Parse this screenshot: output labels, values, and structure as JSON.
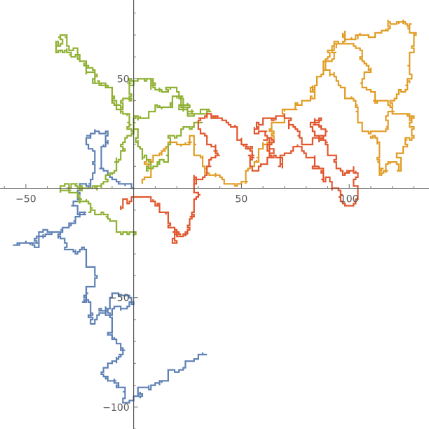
{
  "chart_data": {
    "type": "line",
    "subtype": "lattice random walks",
    "title": "",
    "xlabel": "",
    "ylabel": "",
    "xlim": [
      -62,
      137
    ],
    "ylim": [
      -110,
      86
    ],
    "grid": false,
    "legend": "none",
    "axes_origin": [
      0,
      0
    ],
    "x_ticks": [
      {
        "value": -50,
        "label": "−50"
      },
      {
        "value": 50,
        "label": "50"
      },
      {
        "value": 100,
        "label": "100"
      }
    ],
    "y_ticks": [
      {
        "value": 50,
        "label": "50"
      },
      {
        "value": -50,
        "label": "−50"
      },
      {
        "value": -100,
        "label": "−100"
      }
    ],
    "series": [
      {
        "color": "#5e81b5",
        "waypoints": [
          [
            0,
            0
          ],
          [
            -6,
            3
          ],
          [
            -12,
            8
          ],
          [
            -15,
            18
          ],
          [
            -12,
            26
          ],
          [
            -22,
            20
          ],
          [
            -18,
            10
          ],
          [
            -24,
            2
          ],
          [
            -28,
            -6
          ],
          [
            -22,
            -12
          ],
          [
            -30,
            -18
          ],
          [
            -42,
            -20
          ],
          [
            -50,
            -24
          ],
          [
            -56,
            -26
          ],
          [
            -44,
            -25
          ],
          [
            -34,
            -20
          ],
          [
            -28,
            -28
          ],
          [
            -22,
            -36
          ],
          [
            -18,
            -44
          ],
          [
            -22,
            -52
          ],
          [
            -20,
            -62
          ],
          [
            -10,
            -58
          ],
          [
            -2,
            -50
          ],
          [
            -8,
            -48
          ],
          [
            -16,
            -56
          ],
          [
            -10,
            -66
          ],
          [
            -4,
            -74
          ],
          [
            -10,
            -80
          ],
          [
            -14,
            -86
          ],
          [
            -8,
            -90
          ],
          [
            -4,
            -98
          ],
          [
            2,
            -92
          ],
          [
            8,
            -90
          ],
          [
            16,
            -84
          ],
          [
            24,
            -80
          ],
          [
            30,
            -78
          ],
          [
            34,
            -76
          ]
        ]
      },
      {
        "color": "#e19c24",
        "waypoints": [
          [
            4,
            2
          ],
          [
            8,
            12
          ],
          [
            14,
            18
          ],
          [
            20,
            20
          ],
          [
            26,
            24
          ],
          [
            28,
            16
          ],
          [
            32,
            10
          ],
          [
            36,
            6
          ],
          [
            42,
            2
          ],
          [
            50,
            2
          ],
          [
            54,
            10
          ],
          [
            58,
            18
          ],
          [
            64,
            24
          ],
          [
            70,
            30
          ],
          [
            76,
            36
          ],
          [
            80,
            40
          ],
          [
            84,
            46
          ],
          [
            88,
            54
          ],
          [
            92,
            64
          ],
          [
            98,
            72
          ],
          [
            104,
            68
          ],
          [
            112,
            70
          ],
          [
            118,
            74
          ],
          [
            124,
            76
          ],
          [
            128,
            72
          ],
          [
            130,
            62
          ],
          [
            128,
            50
          ],
          [
            124,
            44
          ],
          [
            120,
            36
          ],
          [
            118,
            28
          ],
          [
            112,
            26
          ],
          [
            106,
            30
          ],
          [
            104,
            38
          ],
          [
            98,
            46
          ],
          [
            94,
            50
          ],
          [
            88,
            54
          ],
          [
            90,
            60
          ],
          [
            94,
            66
          ],
          [
            100,
            66
          ],
          [
            106,
            58
          ],
          [
            110,
            54
          ],
          [
            106,
            48
          ],
          [
            112,
            44
          ],
          [
            118,
            40
          ],
          [
            126,
            34
          ],
          [
            130,
            28
          ],
          [
            126,
            22
          ],
          [
            122,
            16
          ],
          [
            124,
            8
          ],
          [
            118,
            12
          ],
          [
            114,
            20
          ],
          [
            110,
            24
          ]
        ]
      },
      {
        "color": "#8fb032",
        "waypoints": [
          [
            0,
            -22
          ],
          [
            -8,
            -18
          ],
          [
            -14,
            -12
          ],
          [
            -20,
            -8
          ],
          [
            -26,
            -6
          ],
          [
            -30,
            2
          ],
          [
            -34,
            -2
          ],
          [
            -26,
            2
          ],
          [
            -18,
            0
          ],
          [
            -12,
            6
          ],
          [
            -8,
            14
          ],
          [
            -4,
            22
          ],
          [
            0,
            28
          ],
          [
            6,
            32
          ],
          [
            12,
            38
          ],
          [
            18,
            42
          ],
          [
            22,
            36
          ],
          [
            26,
            38
          ],
          [
            32,
            36
          ],
          [
            34,
            36
          ],
          [
            28,
            34
          ],
          [
            22,
            38
          ],
          [
            16,
            46
          ],
          [
            12,
            44
          ],
          [
            8,
            46
          ],
          [
            4,
            50
          ],
          [
            -2,
            40
          ],
          [
            -6,
            36
          ],
          [
            -10,
            44
          ],
          [
            -16,
            48
          ],
          [
            -22,
            56
          ],
          [
            -28,
            60
          ],
          [
            -34,
            62
          ],
          [
            -36,
            66
          ],
          [
            -32,
            70
          ],
          [
            -28,
            64
          ],
          [
            -22,
            58
          ],
          [
            -18,
            54
          ],
          [
            -14,
            48
          ],
          [
            -10,
            42
          ],
          [
            -6,
            34
          ],
          [
            -2,
            28
          ],
          [
            2,
            22
          ],
          [
            6,
            14
          ],
          [
            10,
            10
          ],
          [
            14,
            12
          ],
          [
            16,
            18
          ],
          [
            22,
            24
          ],
          [
            28,
            28
          ],
          [
            32,
            30
          ]
        ]
      },
      {
        "color": "#e1562c",
        "waypoints": [
          [
            -6,
            -8
          ],
          [
            -2,
            -6
          ],
          [
            6,
            -4
          ],
          [
            12,
            -10
          ],
          [
            16,
            -16
          ],
          [
            18,
            -24
          ],
          [
            22,
            -22
          ],
          [
            26,
            -14
          ],
          [
            28,
            -8
          ],
          [
            30,
            -2
          ],
          [
            28,
            6
          ],
          [
            32,
            4
          ],
          [
            36,
            10
          ],
          [
            38,
            18
          ],
          [
            34,
            24
          ],
          [
            30,
            30
          ],
          [
            34,
            34
          ],
          [
            40,
            32
          ],
          [
            46,
            28
          ],
          [
            48,
            22
          ],
          [
            52,
            18
          ],
          [
            54,
            12
          ],
          [
            58,
            8
          ],
          [
            62,
            14
          ],
          [
            64,
            22
          ],
          [
            60,
            26
          ],
          [
            56,
            28
          ],
          [
            60,
            30
          ],
          [
            66,
            32
          ],
          [
            70,
            34
          ],
          [
            74,
            28
          ],
          [
            78,
            22
          ],
          [
            82,
            20
          ],
          [
            86,
            24
          ],
          [
            90,
            26
          ],
          [
            86,
            32
          ],
          [
            82,
            30
          ],
          [
            86,
            22
          ],
          [
            90,
            16
          ],
          [
            94,
            10
          ],
          [
            98,
            6
          ],
          [
            100,
            8
          ],
          [
            102,
            4
          ],
          [
            104,
            -4
          ],
          [
            100,
            -8
          ],
          [
            96,
            -2
          ],
          [
            92,
            0
          ],
          [
            88,
            8
          ],
          [
            84,
            14
          ],
          [
            80,
            14
          ],
          [
            76,
            20
          ],
          [
            72,
            16
          ],
          [
            68,
            10
          ],
          [
            64,
            14
          ],
          [
            60,
            22
          ]
        ]
      }
    ]
  }
}
